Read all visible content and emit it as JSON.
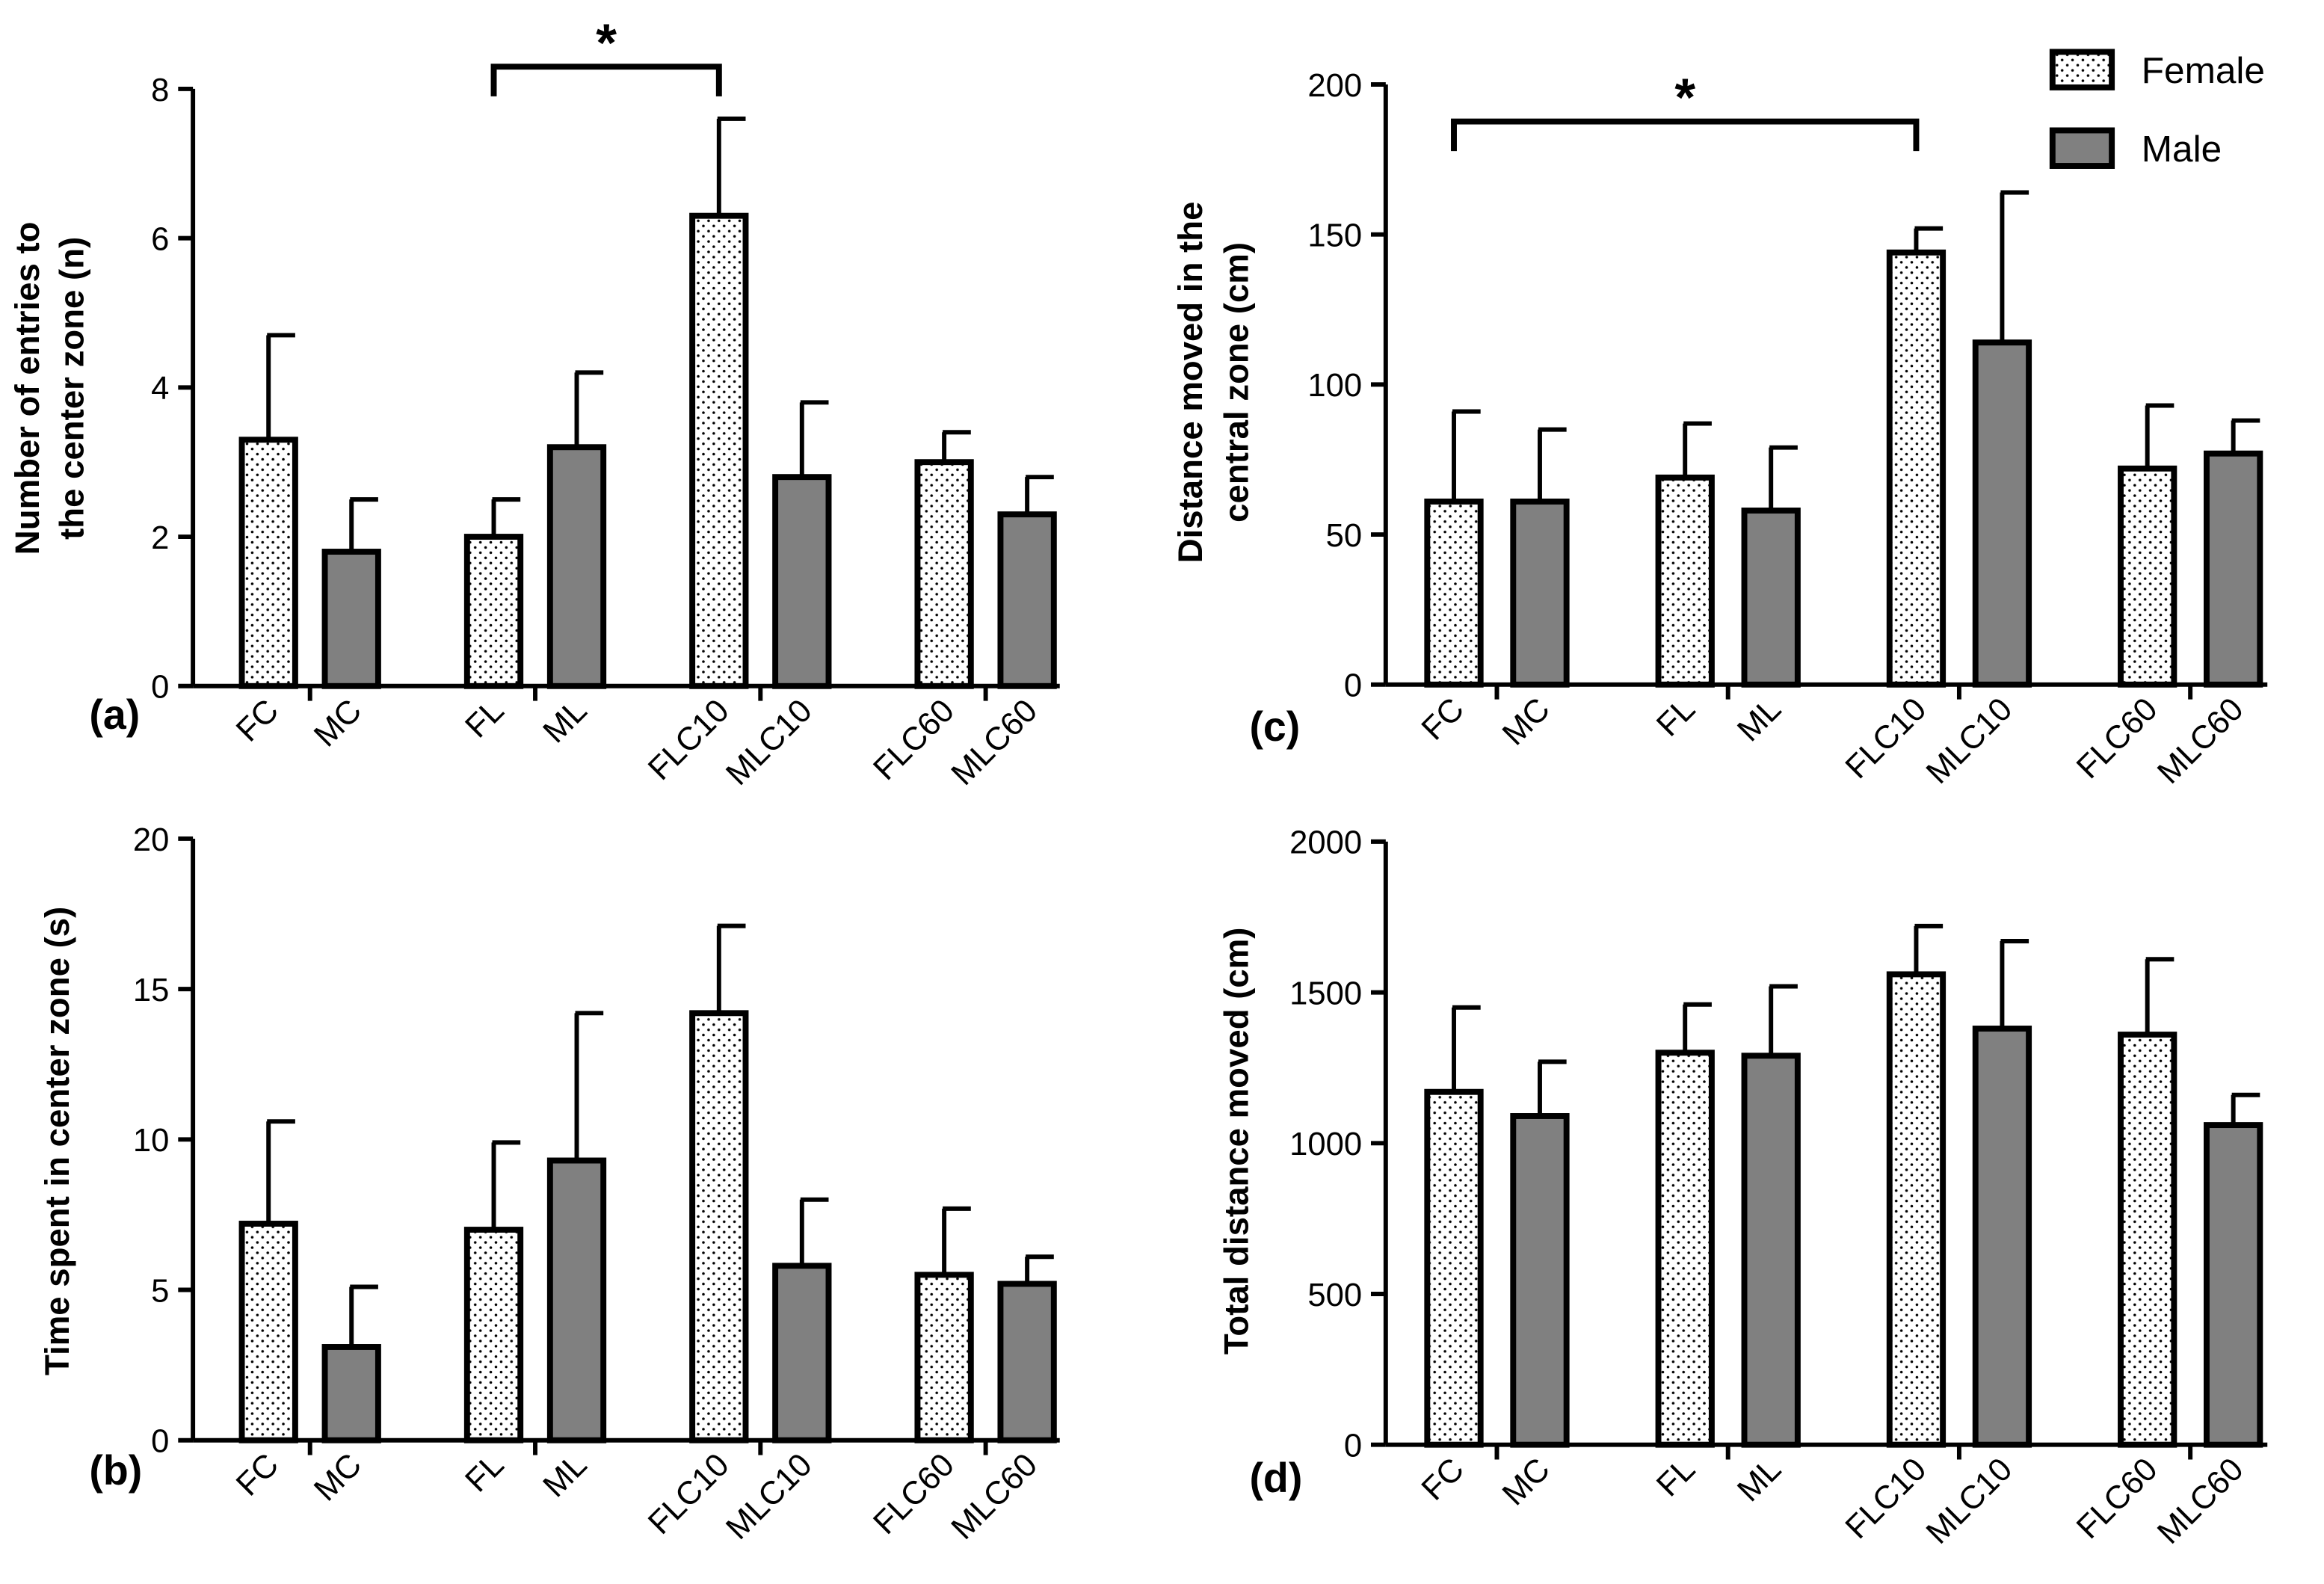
{
  "chart_data": [
    {
      "type": "bar",
      "panel_label": "(a)",
      "y_label": [
        "Number of entries to",
        "the center zone (n)"
      ],
      "categories": [
        "FC",
        "MC",
        "FL",
        "ML",
        "FLC10",
        "MLC10",
        "FLC60",
        "MLC60"
      ],
      "series": [
        {
          "color": "#ffffff",
          "pattern": "dots",
          "values": [
            3.3,
            null,
            2.0,
            null,
            6.3,
            null,
            3.0,
            null
          ],
          "errors": [
            1.4,
            null,
            0.5,
            null,
            1.3,
            null,
            0.4,
            null
          ]
        },
        {
          "color": "#808080",
          "values": [
            null,
            1.8,
            null,
            3.2,
            null,
            2.8,
            null,
            2.3
          ],
          "errors": [
            null,
            0.7,
            null,
            1.0,
            null,
            1.0,
            null,
            0.5
          ]
        }
      ],
      "ylim": [
        0,
        8
      ],
      "yticks": [
        0,
        2,
        4,
        6,
        8
      ],
      "annotations": [
        {
          "text": "*",
          "from": "FL",
          "to": "FLC10"
        }
      ]
    },
    {
      "type": "bar",
      "panel_label": "(b)",
      "y_label": [
        "Time spent in center zone (s)"
      ],
      "categories": [
        "FC",
        "MC",
        "FL",
        "ML",
        "FLC10",
        "MLC10",
        "FLC60",
        "MLC60"
      ],
      "series": [
        {
          "color": "#ffffff",
          "pattern": "dots",
          "values": [
            7.2,
            null,
            7.0,
            null,
            14.2,
            null,
            5.5,
            null
          ],
          "errors": [
            3.4,
            null,
            2.9,
            null,
            2.9,
            null,
            2.2,
            null
          ]
        },
        {
          "color": "#808080",
          "values": [
            null,
            3.1,
            null,
            9.3,
            null,
            5.8,
            null,
            5.2
          ],
          "errors": [
            null,
            2.0,
            null,
            4.9,
            null,
            2.2,
            null,
            0.9
          ]
        }
      ],
      "ylim": [
        0,
        20
      ],
      "yticks": [
        0,
        5,
        10,
        15,
        20
      ]
    },
    {
      "type": "bar",
      "panel_label": "(c)",
      "y_label": [
        "Distance moved in the",
        "central zone (cm)"
      ],
      "categories": [
        "FC",
        "MC",
        "FL",
        "ML",
        "FLC10",
        "MLC10",
        "FLC60",
        "MLC60"
      ],
      "series": [
        {
          "name": "Female",
          "color": "#ffffff",
          "pattern": "dots",
          "values": [
            61,
            null,
            69,
            null,
            144,
            null,
            72,
            null
          ],
          "errors": [
            30,
            null,
            18,
            null,
            8,
            null,
            21,
            null
          ]
        },
        {
          "name": "Male",
          "color": "#808080",
          "values": [
            null,
            61,
            null,
            58,
            null,
            114,
            null,
            77
          ],
          "errors": [
            null,
            24,
            null,
            21,
            null,
            50,
            null,
            11
          ]
        }
      ],
      "ylim": [
        0,
        200
      ],
      "yticks": [
        0,
        50,
        100,
        150,
        200
      ],
      "legend": "upper right",
      "annotations": [
        {
          "text": "*",
          "from": "FC",
          "to": "FLC10"
        }
      ]
    },
    {
      "type": "bar",
      "panel_label": "(d)",
      "y_label": [
        "Total distance moved (cm)"
      ],
      "categories": [
        "FC",
        "MC",
        "FL",
        "ML",
        "FLC10",
        "MLC10",
        "FLC60",
        "MLC60"
      ],
      "series": [
        {
          "color": "#ffffff",
          "pattern": "dots",
          "values": [
            1170,
            null,
            1300,
            null,
            1560,
            null,
            1360,
            null
          ],
          "errors": [
            280,
            null,
            160,
            null,
            160,
            null,
            250,
            null
          ]
        },
        {
          "color": "#808080",
          "values": [
            null,
            1090,
            null,
            1290,
            null,
            1380,
            null,
            1060
          ],
          "errors": [
            null,
            180,
            null,
            230,
            null,
            290,
            null,
            100
          ]
        }
      ],
      "ylim": [
        0,
        2000
      ],
      "yticks": [
        0,
        500,
        1000,
        1500,
        2000
      ]
    }
  ]
}
